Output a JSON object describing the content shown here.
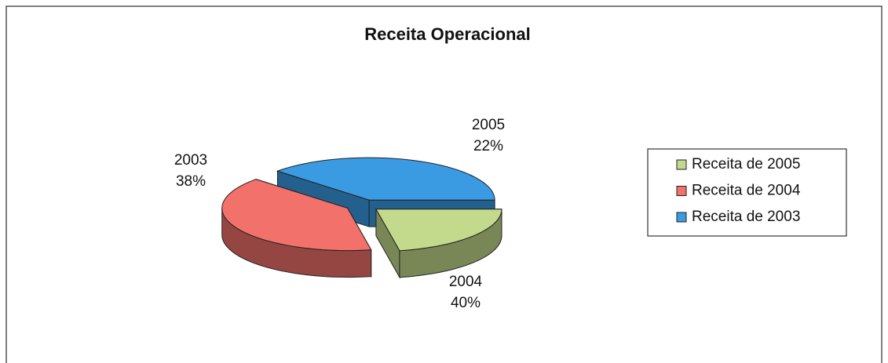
{
  "chart_data": {
    "type": "pie",
    "title": "Receita Operacional",
    "categories": [
      "2005",
      "2004",
      "2003"
    ],
    "values": [
      22,
      40,
      38
    ],
    "value_labels": [
      "22%",
      "40%",
      "38%"
    ],
    "legend": [
      "Receita de 2005",
      "Receita de 2004",
      "Receita de 2003"
    ],
    "colors": [
      "#c3d98b",
      "#f2716b",
      "#3a9be3"
    ],
    "legend_position": "right"
  }
}
